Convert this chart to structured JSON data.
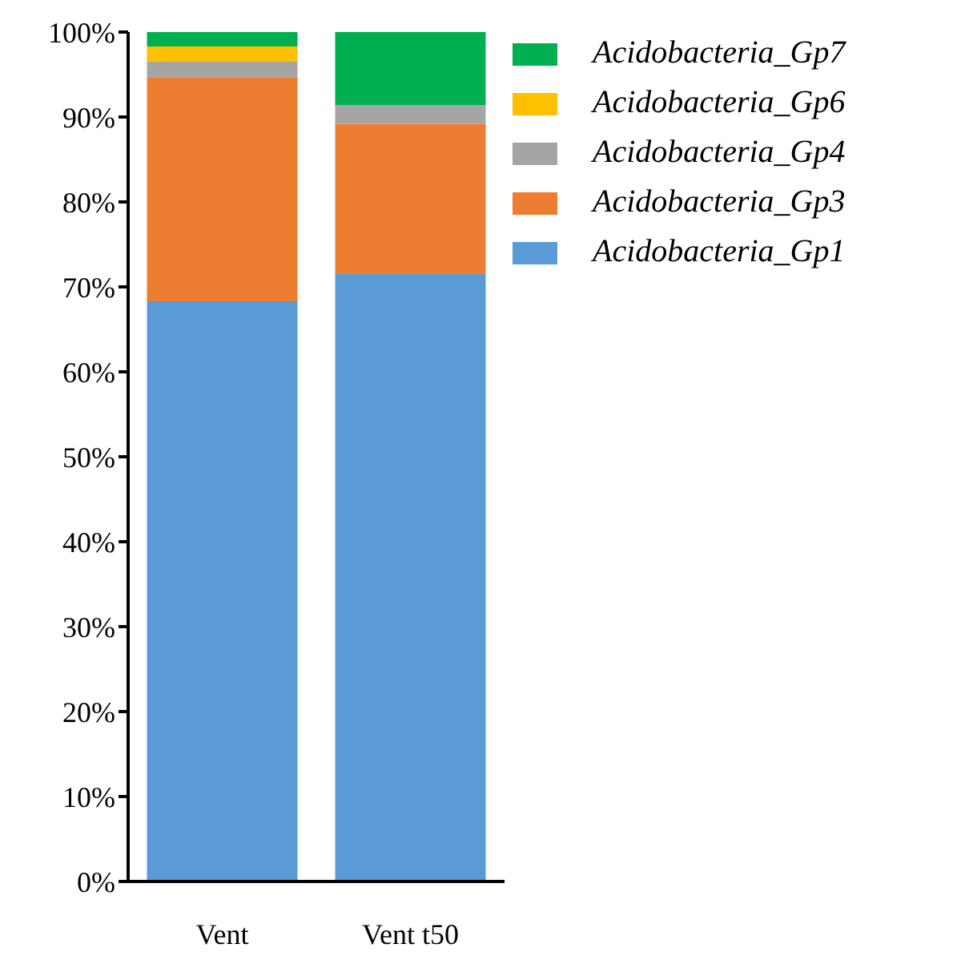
{
  "chart_data": {
    "type": "bar",
    "stacked": true,
    "categories": [
      "Vent",
      "Vent t50"
    ],
    "series": [
      {
        "name": "Acidobacteria_Gp1",
        "color": "#5b9bd5",
        "values": [
          68.3,
          71.5
        ]
      },
      {
        "name": "Acidobacteria_Gp3",
        "color": "#ed7d31",
        "values": [
          26.4,
          17.7
        ]
      },
      {
        "name": "Acidobacteria_Gp4",
        "color": "#a5a5a5",
        "values": [
          1.8,
          2.2
        ]
      },
      {
        "name": "Acidobacteria_Gp6",
        "color": "#ffc000",
        "values": [
          1.8,
          0
        ]
      },
      {
        "name": "Acidobacteria_Gp7",
        "color": "#00b050",
        "values": [
          1.7,
          8.6
        ]
      }
    ],
    "ylim": [
      0,
      100
    ],
    "yticks": [
      {
        "value": 0,
        "label": "0%"
      },
      {
        "value": 10,
        "label": "10%"
      },
      {
        "value": 20,
        "label": "20%"
      },
      {
        "value": 30,
        "label": "30%"
      },
      {
        "value": 40,
        "label": "40%"
      },
      {
        "value": 50,
        "label": "50%"
      },
      {
        "value": 60,
        "label": "60%"
      },
      {
        "value": 70,
        "label": "70%"
      },
      {
        "value": 80,
        "label": "80%"
      },
      {
        "value": 90,
        "label": "90%"
      },
      {
        "value": 100,
        "label": "100%"
      }
    ],
    "grid": false,
    "legend": "top right"
  }
}
